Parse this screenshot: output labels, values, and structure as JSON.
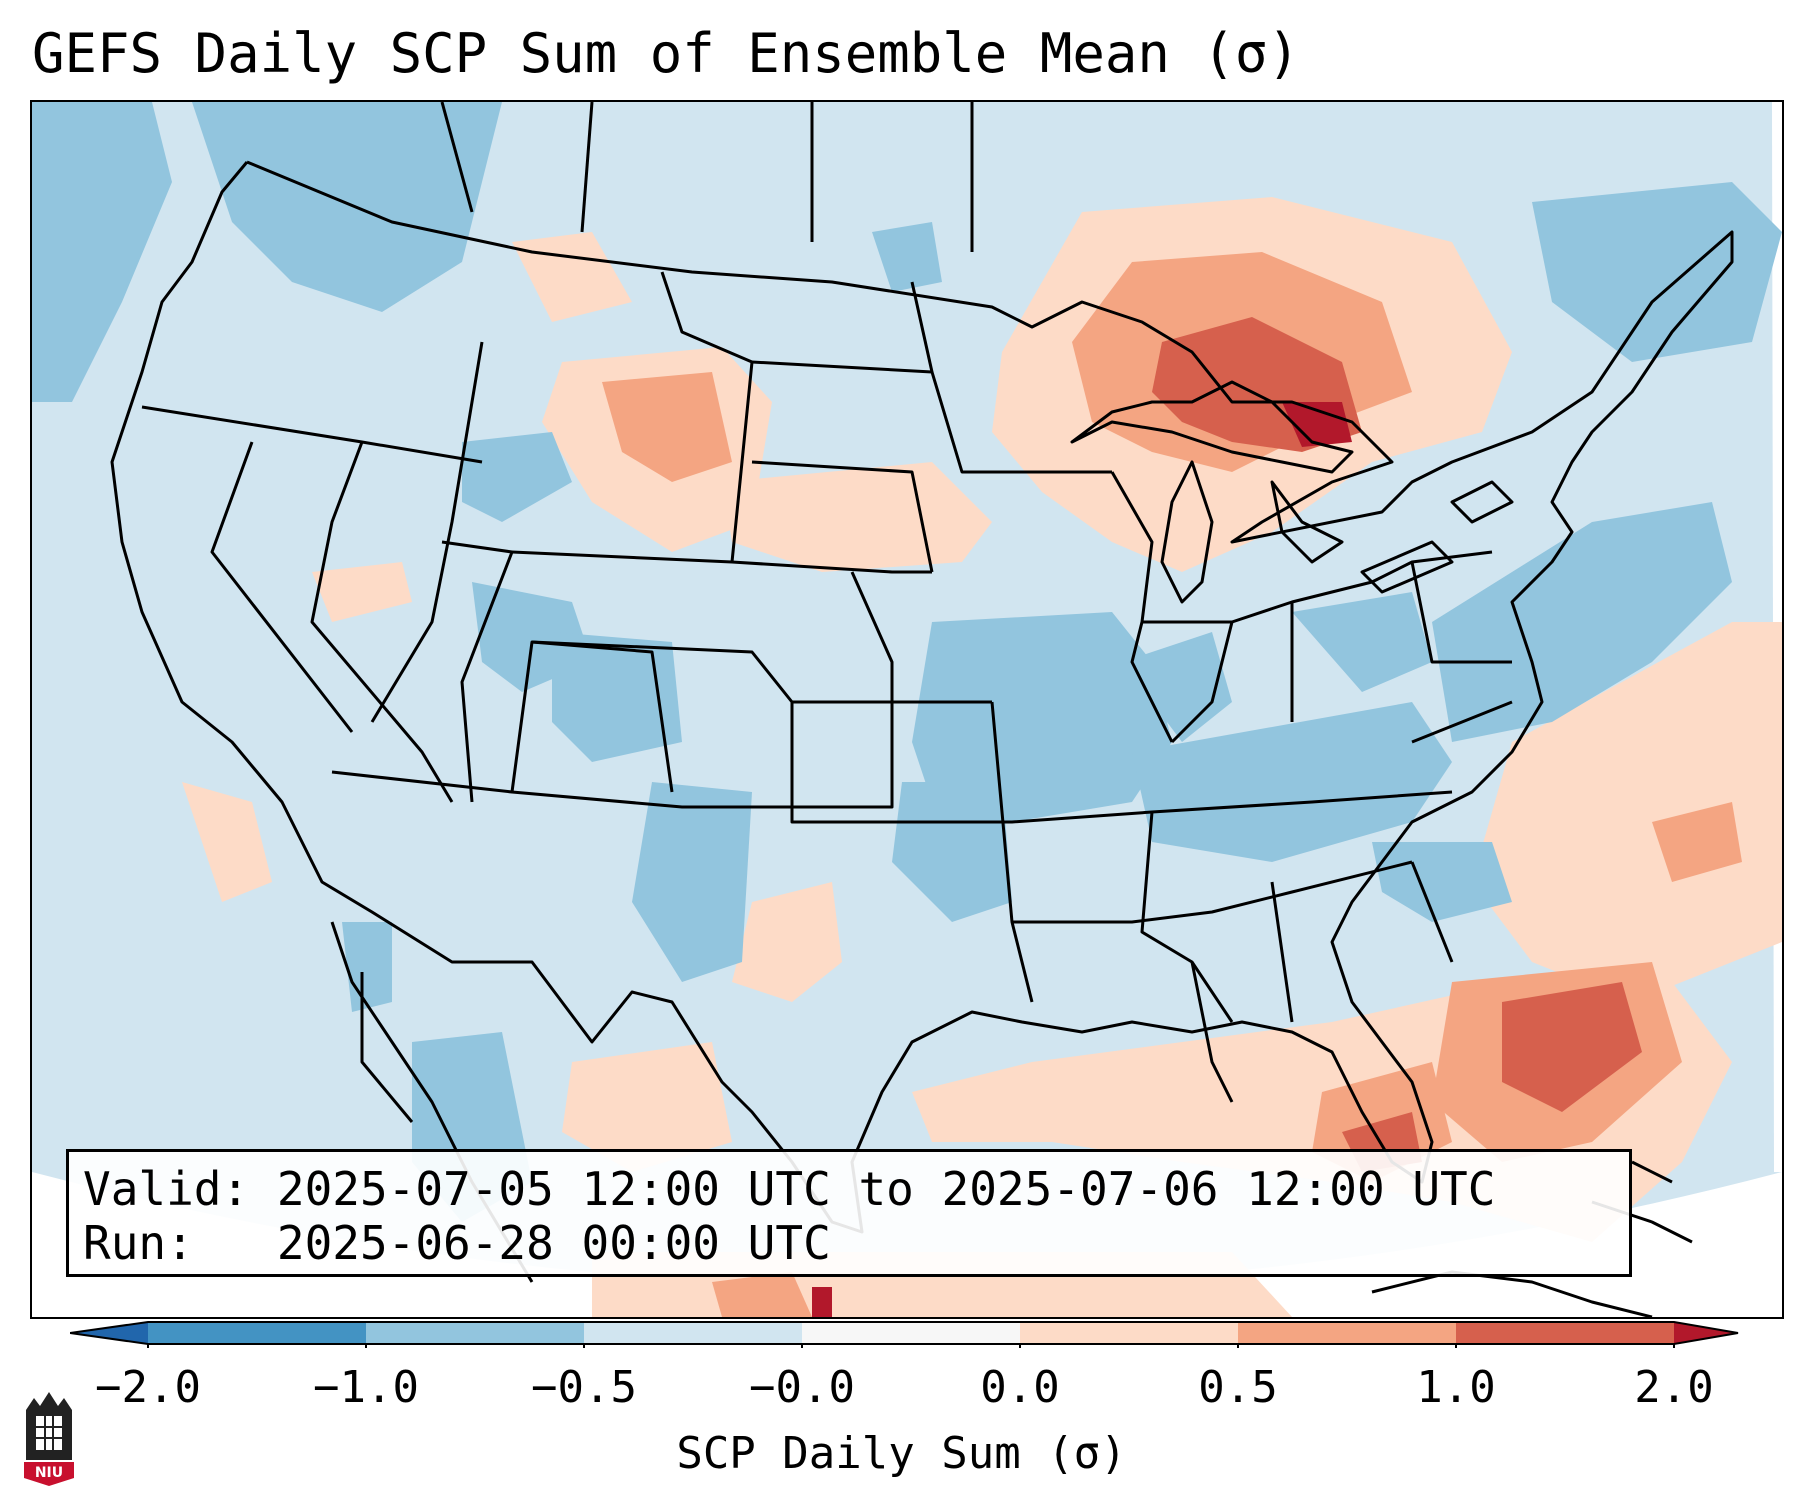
{
  "title": "GEFS Daily SCP Sum of Ensemble Mean (σ)",
  "info": {
    "valid_label": "Valid:",
    "valid_value": "2025-07-05 12:00 UTC to 2025-07-06 12:00 UTC",
    "run_label": "Run:",
    "run_value": "2025-06-28 00:00 UTC"
  },
  "colorbar": {
    "label": "SCP Daily Sum (σ)",
    "ticks": [
      "−2.0",
      "−1.0",
      "−0.5",
      "−0.0",
      "0.0",
      "0.5",
      "1.0",
      "2.0"
    ],
    "colors": {
      "under": "#2166ac",
      "bin_m2_m1": "#4393c3",
      "bin_m1_m05": "#92c5de",
      "bin_m05_m0": "#d1e5f0",
      "bin_m0_0": "#f7f7f7",
      "bin_0_05": "#fddbc7",
      "bin_05_1": "#f4a582",
      "bin_1_2": "#d6604d",
      "over": "#b2182b"
    }
  },
  "logo": {
    "text": "NIU"
  }
}
